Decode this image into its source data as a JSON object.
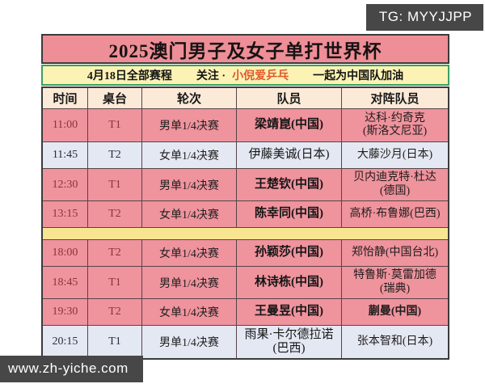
{
  "badges": {
    "telegram": "TG: MYYJJPP",
    "website": "www.zh-yiche.com"
  },
  "table": {
    "title": "2025澳门男子及女子单打世界杯",
    "subheader": {
      "date": "4月18日全部赛程",
      "follow": "关注 ·",
      "highlight": "小倪爱乒乓",
      "slogan": "一起为中国队加油"
    },
    "columns": [
      "时间",
      "桌台",
      "轮次",
      "队员",
      "对阵队员"
    ],
    "rows": [
      {
        "time": "11:00",
        "table": "T1",
        "round": "男单1/4决赛",
        "player": "梁靖崑(中国)",
        "opponent": "达科·约奇克\n(斯洛文尼亚)",
        "theme": "pink",
        "player_bold": true,
        "opponent_bold": false
      },
      {
        "time": "11:45",
        "table": "T2",
        "round": "女单1/4决赛",
        "player": "伊藤美诚(日本)",
        "opponent": "大藤沙月(日本)",
        "theme": "lavender",
        "player_bold": false,
        "opponent_bold": false
      },
      {
        "time": "12:30",
        "table": "T1",
        "round": "男单1/4决赛",
        "player": "王楚钦(中国)",
        "opponent": "贝内迪克特·杜达\n(德国)",
        "theme": "pink",
        "player_bold": true,
        "opponent_bold": false
      },
      {
        "time": "13:15",
        "table": "T2",
        "round": "女单1/4决赛",
        "player": "陈幸同(中国)",
        "opponent": "高桥·布鲁娜(巴西)",
        "theme": "pink",
        "player_bold": true,
        "opponent_bold": false
      },
      {
        "time": "18:00",
        "table": "T2",
        "round": "女单1/4决赛",
        "player": "孙颖莎(中国)",
        "opponent": "郑怡静(中国台北)",
        "theme": "pink",
        "player_bold": true,
        "opponent_bold": false
      },
      {
        "time": "18:45",
        "table": "T1",
        "round": "男单1/4决赛",
        "player": "林诗栋(中国)",
        "opponent": "特鲁斯·莫雷加德\n(瑞典)",
        "theme": "pink",
        "player_bold": true,
        "opponent_bold": false
      },
      {
        "time": "19:30",
        "table": "T2",
        "round": "女单1/4决赛",
        "player": "王曼昱(中国)",
        "opponent": "蒯曼(中国)",
        "theme": "pink",
        "player_bold": true,
        "opponent_bold": true
      },
      {
        "time": "20:15",
        "table": "T1",
        "round": "男单1/4决赛",
        "player": "雨果·卡尔德拉诺\n(巴西)",
        "opponent": "张本智和(日本)",
        "theme": "lavender",
        "player_bold": false,
        "opponent_bold": false
      }
    ],
    "separator_after_row_index": 3
  },
  "colors": {
    "title_bg": "#ee8e97",
    "row_pink": "#ef939d",
    "row_lavender": "#e4e8f3",
    "header_cream": "#fcead8",
    "subheader_yellow": "#fbf2b4",
    "separator_yellow": "#f8e592",
    "green_border": "#3aa05f",
    "highlight_orange": "#e0582a",
    "time_dark_red": "#8e3138",
    "badge_bg": "#474747",
    "grid_line": "#574449"
  }
}
